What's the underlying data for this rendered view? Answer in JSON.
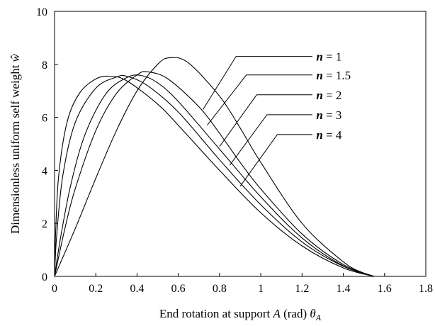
{
  "chart_data": {
    "type": "line",
    "xlabel": "End rotation at support A (rad) θA",
    "xlabel_parts": {
      "pre": "End rotation at support ",
      "var": "A",
      "mid": " (rad) ",
      "theta": "θ",
      "sub": "A"
    },
    "ylabel": "Dimensionless uniform self weight ŵ",
    "ylabel_parts": {
      "text": "Dimensionless uniform self weight ",
      "sym": "ŵ"
    },
    "xlim": [
      0,
      1.8
    ],
    "ylim": [
      0,
      10
    ],
    "xticks": [
      "0",
      "0.2",
      "0.4",
      "0.6",
      "0.8",
      "1",
      "1.2",
      "1.4",
      "1.6",
      "1.8"
    ],
    "yticks": [
      "0",
      "2",
      "4",
      "6",
      "8",
      "10"
    ],
    "grid": false,
    "legend_placement": "top-right (callout labels with leader lines)",
    "series": [
      {
        "name": "n = 1",
        "n_value": "1",
        "x": [
          0,
          0.1,
          0.2,
          0.3,
          0.4,
          0.5,
          0.56,
          0.65,
          0.8,
          0.9,
          1.0,
          1.2,
          1.4,
          1.5,
          1.55
        ],
        "y": [
          0,
          1.8,
          3.7,
          5.5,
          7.0,
          8.0,
          8.25,
          8.05,
          6.8,
          5.6,
          4.3,
          2.0,
          0.55,
          0.12,
          0
        ]
      },
      {
        "name": "n = 1.5",
        "n_value": "1.5",
        "x": [
          0,
          0.05,
          0.1,
          0.2,
          0.3,
          0.4,
          0.45,
          0.55,
          0.7,
          0.8,
          0.9,
          1.0,
          1.2,
          1.4,
          1.55
        ],
        "y": [
          0,
          1.8,
          3.3,
          5.5,
          6.9,
          7.6,
          7.72,
          7.45,
          6.4,
          5.4,
          4.3,
          3.3,
          1.6,
          0.45,
          0
        ]
      },
      {
        "name": "n = 2",
        "n_value": "2",
        "x": [
          0,
          0.03,
          0.08,
          0.15,
          0.25,
          0.35,
          0.42,
          0.5,
          0.6,
          0.8,
          1.0,
          1.2,
          1.4,
          1.55
        ],
        "y": [
          0,
          1.5,
          3.5,
          5.4,
          6.9,
          7.5,
          7.58,
          7.3,
          6.6,
          4.8,
          3.0,
          1.45,
          0.4,
          0
        ]
      },
      {
        "name": "n = 3",
        "n_value": "3",
        "x": [
          0,
          0.01,
          0.04,
          0.1,
          0.2,
          0.3,
          0.35,
          0.45,
          0.6,
          0.8,
          1.0,
          1.2,
          1.4,
          1.55
        ],
        "y": [
          0,
          1.5,
          3.8,
          5.8,
          7.1,
          7.52,
          7.55,
          7.2,
          6.2,
          4.4,
          2.7,
          1.3,
          0.38,
          0
        ]
      },
      {
        "name": "n = 4",
        "n_value": "4",
        "x": [
          0,
          0.005,
          0.02,
          0.06,
          0.12,
          0.2,
          0.27,
          0.35,
          0.5,
          0.6,
          0.8,
          1.0,
          1.2,
          1.4,
          1.55
        ],
        "y": [
          0,
          1.6,
          3.8,
          5.8,
          6.9,
          7.45,
          7.55,
          7.38,
          6.5,
          5.7,
          4.0,
          2.4,
          1.15,
          0.32,
          0
        ]
      }
    ]
  }
}
